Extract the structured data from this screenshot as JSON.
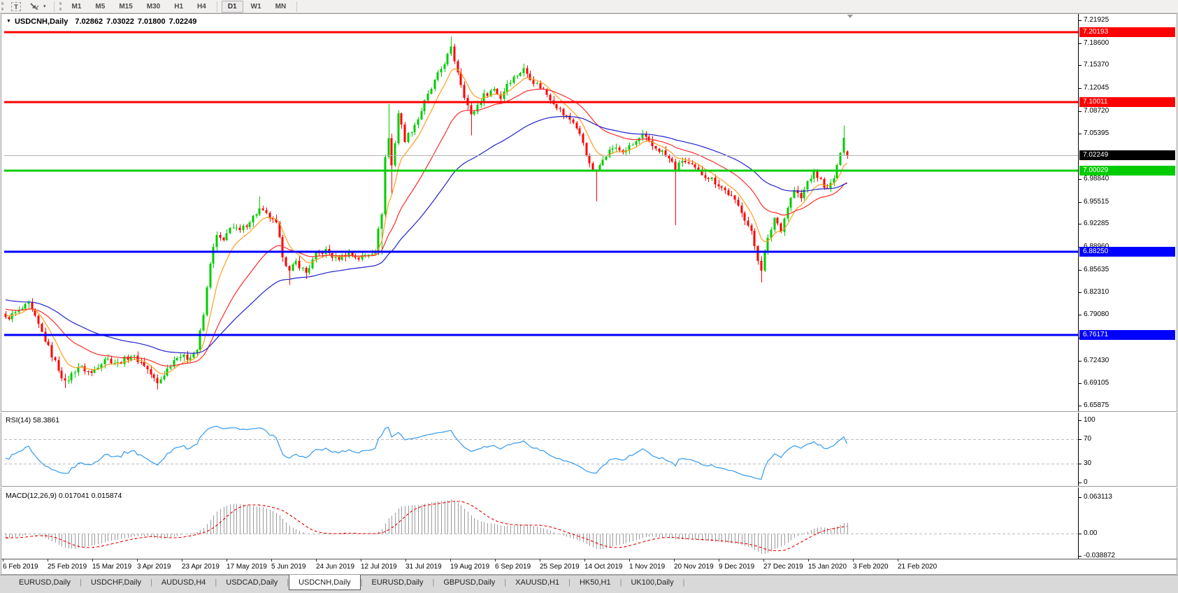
{
  "toolbar": {
    "text_tool_label": "T",
    "timeframes": [
      {
        "label": "M1",
        "active": false,
        "sep_before": false
      },
      {
        "label": "M5",
        "active": false,
        "sep_before": false
      },
      {
        "label": "M15",
        "active": false,
        "sep_before": false
      },
      {
        "label": "M30",
        "active": false,
        "sep_before": false
      },
      {
        "label": "H1",
        "active": false,
        "sep_before": false
      },
      {
        "label": "H4",
        "active": false,
        "sep_before": false
      },
      {
        "label": "D1",
        "active": true,
        "sep_before": true
      },
      {
        "label": "W1",
        "active": false,
        "sep_before": false
      },
      {
        "label": "MN",
        "active": false,
        "sep_before": false
      }
    ]
  },
  "chart_header": {
    "symbol_label": "USDCNH,Daily",
    "open": "7.02862",
    "high": "7.03022",
    "low": "7.01800",
    "close": "7.02249"
  },
  "main_pane": {
    "axis_labels": [
      {
        "text": "7.21925",
        "price": 7.21925
      },
      {
        "text": "7.18600",
        "price": 7.186
      },
      {
        "text": "7.15370",
        "price": 7.1537
      },
      {
        "text": "7.12045",
        "price": 7.12045
      },
      {
        "text": "7.08720",
        "price": 7.0872
      },
      {
        "text": "7.05395",
        "price": 7.05395
      },
      {
        "text": "6.98840",
        "price": 6.9884
      },
      {
        "text": "6.95515",
        "price": 6.95515
      },
      {
        "text": "6.92285",
        "price": 6.92285
      },
      {
        "text": "6.88960",
        "price": 6.8896
      },
      {
        "text": "6.85635",
        "price": 6.85635
      },
      {
        "text": "6.82310",
        "price": 6.8231
      },
      {
        "text": "6.79080",
        "price": 6.7908
      },
      {
        "text": "6.75755",
        "price": 6.75755
      },
      {
        "text": "6.72430",
        "price": 6.7243
      },
      {
        "text": "6.69105",
        "price": 6.69105
      },
      {
        "text": "6.65875",
        "price": 6.65875
      }
    ],
    "hlines": [
      {
        "label": "7.20193",
        "price": 7.20193,
        "color": "#ff0000"
      },
      {
        "label": "7.10011",
        "price": 7.10011,
        "color": "#ff0000"
      },
      {
        "label": "7.00029",
        "price": 7.00029,
        "color": "#00cc00"
      },
      {
        "label": "6.88250",
        "price": 6.8825,
        "color": "#0000ff"
      },
      {
        "label": "6.76171",
        "price": 6.76171,
        "color": "#0000ff"
      }
    ],
    "current_price": {
      "label": "7.02249",
      "price": 7.02249,
      "bg": "#000000",
      "line_color": "#b4b4b4"
    }
  },
  "rsi_pane": {
    "label": "RSI(14) 58.3861",
    "line_color": "#3399ee",
    "levels": [
      {
        "text": "100",
        "value": 100,
        "dashed": false
      },
      {
        "text": "70",
        "value": 70,
        "dashed": true
      },
      {
        "text": "30",
        "value": 30,
        "dashed": true
      },
      {
        "text": "0",
        "value": 0,
        "dashed": false
      }
    ]
  },
  "macd_pane": {
    "label": "MACD(12,26,9) 0.017041 0.015874",
    "bar_color": "#9a9a9a",
    "signal_color": "#ee0000",
    "axis_labels": [
      {
        "text": "0.063113",
        "value": 0.063113
      },
      {
        "text": "0.00",
        "value": 0
      },
      {
        "text": "-0.038872",
        "value": -0.038872
      }
    ]
  },
  "date_axis": {
    "labels": [
      "6 Feb 2019",
      "25 Feb 2019",
      "15 Mar 2019",
      "3 Apr 2019",
      "23 Apr 2019",
      "17 May 2019",
      "5 Jun 2019",
      "24 Jun 2019",
      "12 Jul 2019",
      "31 Jul 2019",
      "19 Aug 2019",
      "6 Sep 2019",
      "25 Sep 2019",
      "14 Oct 2019",
      "1 Nov 2019",
      "20 Nov 2019",
      "9 Dec 2019",
      "27 Dec 2019",
      "15 Jan 2020",
      "3 Feb 2020",
      "21 Feb 2020"
    ]
  },
  "tabs": [
    {
      "label": "EURUSD,Daily",
      "active": false
    },
    {
      "label": "USDCHF,Daily",
      "active": false
    },
    {
      "label": "AUDUSD,H4",
      "active": false
    },
    {
      "label": "USDCAD,Daily",
      "active": false
    },
    {
      "label": "USDCNH,Daily",
      "active": true
    },
    {
      "label": "EURUSD,Daily",
      "active": false
    },
    {
      "label": "GBPUSD,Daily",
      "active": false
    },
    {
      "label": "XAUUSD,H1",
      "active": false
    },
    {
      "label": "HK50,H1",
      "active": false
    },
    {
      "label": "UK100,Daily",
      "active": false
    }
  ],
  "chart_data": {
    "type": "candlestick",
    "symbol": "USDCNH",
    "period": "Daily",
    "title": "USDCNH,Daily",
    "bars": 256,
    "up_color": "#00cc00",
    "down_color": "#ff0000",
    "price_axis": {
      "min": 6.65875,
      "max": 7.21925,
      "tick_step": 0.03325
    },
    "last_bar": {
      "open": 7.02862,
      "high": 7.03022,
      "low": 7.018,
      "close": 7.02249
    },
    "close_anchors": [
      [
        0,
        6.785
      ],
      [
        4,
        6.796
      ],
      [
        7,
        6.806
      ],
      [
        10,
        6.776
      ],
      [
        14,
        6.732
      ],
      [
        18,
        6.692
      ],
      [
        22,
        6.716
      ],
      [
        26,
        6.706
      ],
      [
        30,
        6.728
      ],
      [
        34,
        6.72
      ],
      [
        38,
        6.732
      ],
      [
        42,
        6.718
      ],
      [
        46,
        6.69
      ],
      [
        49,
        6.712
      ],
      [
        52,
        6.732
      ],
      [
        55,
        6.728
      ],
      [
        58,
        6.74
      ],
      [
        60,
        6.79
      ],
      [
        62,
        6.868
      ],
      [
        64,
        6.906
      ],
      [
        66,
        6.896
      ],
      [
        68,
        6.92
      ],
      [
        71,
        6.912
      ],
      [
        74,
        6.928
      ],
      [
        77,
        6.944
      ],
      [
        80,
        6.932
      ],
      [
        82,
        6.922
      ],
      [
        84,
        6.878
      ],
      [
        86,
        6.853
      ],
      [
        88,
        6.868
      ],
      [
        91,
        6.852
      ],
      [
        94,
        6.878
      ],
      [
        97,
        6.884
      ],
      [
        100,
        6.872
      ],
      [
        104,
        6.88
      ],
      [
        107,
        6.873
      ],
      [
        110,
        6.88
      ],
      [
        112,
        6.886
      ],
      [
        114,
        6.94
      ],
      [
        115,
        7.02
      ],
      [
        116,
        7.048
      ],
      [
        117,
        7.008
      ],
      [
        118,
        7.042
      ],
      [
        119,
        7.085
      ],
      [
        121,
        7.046
      ],
      [
        123,
        7.06
      ],
      [
        125,
        7.076
      ],
      [
        127,
        7.1
      ],
      [
        130,
        7.13
      ],
      [
        133,
        7.158
      ],
      [
        135,
        7.178
      ],
      [
        137,
        7.145
      ],
      [
        139,
        7.11
      ],
      [
        141,
        7.08
      ],
      [
        143,
        7.096
      ],
      [
        145,
        7.11
      ],
      [
        148,
        7.12
      ],
      [
        150,
        7.106
      ],
      [
        152,
        7.128
      ],
      [
        155,
        7.14
      ],
      [
        157,
        7.148
      ],
      [
        160,
        7.13
      ],
      [
        163,
        7.118
      ],
      [
        166,
        7.1
      ],
      [
        169,
        7.082
      ],
      [
        172,
        7.072
      ],
      [
        175,
        7.042
      ],
      [
        177,
        7.008
      ],
      [
        179,
        6.998
      ],
      [
        181,
        7.02
      ],
      [
        184,
        7.034
      ],
      [
        187,
        7.028
      ],
      [
        190,
        7.038
      ],
      [
        193,
        7.052
      ],
      [
        196,
        7.036
      ],
      [
        199,
        7.028
      ],
      [
        202,
        7.012
      ],
      [
        203,
        7.002
      ],
      [
        205,
        7.016
      ],
      [
        208,
        7.006
      ],
      [
        211,
        6.996
      ],
      [
        214,
        6.988
      ],
      [
        217,
        6.976
      ],
      [
        220,
        6.962
      ],
      [
        223,
        6.942
      ],
      [
        226,
        6.91
      ],
      [
        228,
        6.872
      ],
      [
        229,
        6.858
      ],
      [
        231,
        6.9
      ],
      [
        233,
        6.932
      ],
      [
        235,
        6.915
      ],
      [
        237,
        6.948
      ],
      [
        239,
        6.972
      ],
      [
        241,
        6.96
      ],
      [
        243,
        6.985
      ],
      [
        245,
        6.998
      ],
      [
        247,
        6.986
      ],
      [
        249,
        6.972
      ],
      [
        251,
        6.99
      ],
      [
        252,
        7.005
      ],
      [
        253,
        7.03
      ],
      [
        254,
        7.052
      ],
      [
        255,
        7.02249
      ]
    ],
    "wick_events": [
      {
        "i": 18,
        "low": 6.684
      },
      {
        "i": 46,
        "low": 6.682
      },
      {
        "i": 77,
        "high": 6.963
      },
      {
        "i": 86,
        "low": 6.834
      },
      {
        "i": 91,
        "low": 6.843
      },
      {
        "i": 114,
        "low": 6.878
      },
      {
        "i": 116,
        "high": 7.097
      },
      {
        "i": 117,
        "low": 6.965
      },
      {
        "i": 135,
        "high": 7.196
      },
      {
        "i": 141,
        "low": 7.052
      },
      {
        "i": 157,
        "high": 7.156
      },
      {
        "i": 179,
        "low": 6.956
      },
      {
        "i": 203,
        "low": 6.921
      },
      {
        "i": 229,
        "low": 6.838
      },
      {
        "i": 254,
        "high": 7.066
      }
    ],
    "moving_averages": [
      {
        "period": 8,
        "method": "ema",
        "color": "#ff9c1e"
      },
      {
        "period": 25,
        "method": "ema",
        "color": "#ff2a2a"
      },
      {
        "period": 55,
        "method": "ema",
        "color": "#2222cc"
      }
    ],
    "rsi": {
      "period": 14,
      "current": 58.3861,
      "levels": [
        70,
        30
      ],
      "range": [
        0,
        100
      ]
    },
    "macd": {
      "fast": 12,
      "slow": 26,
      "signal": 9,
      "current": 0.017041,
      "signal_current": 0.015874,
      "axis_max": 0.063113,
      "axis_min": -0.038872
    }
  }
}
